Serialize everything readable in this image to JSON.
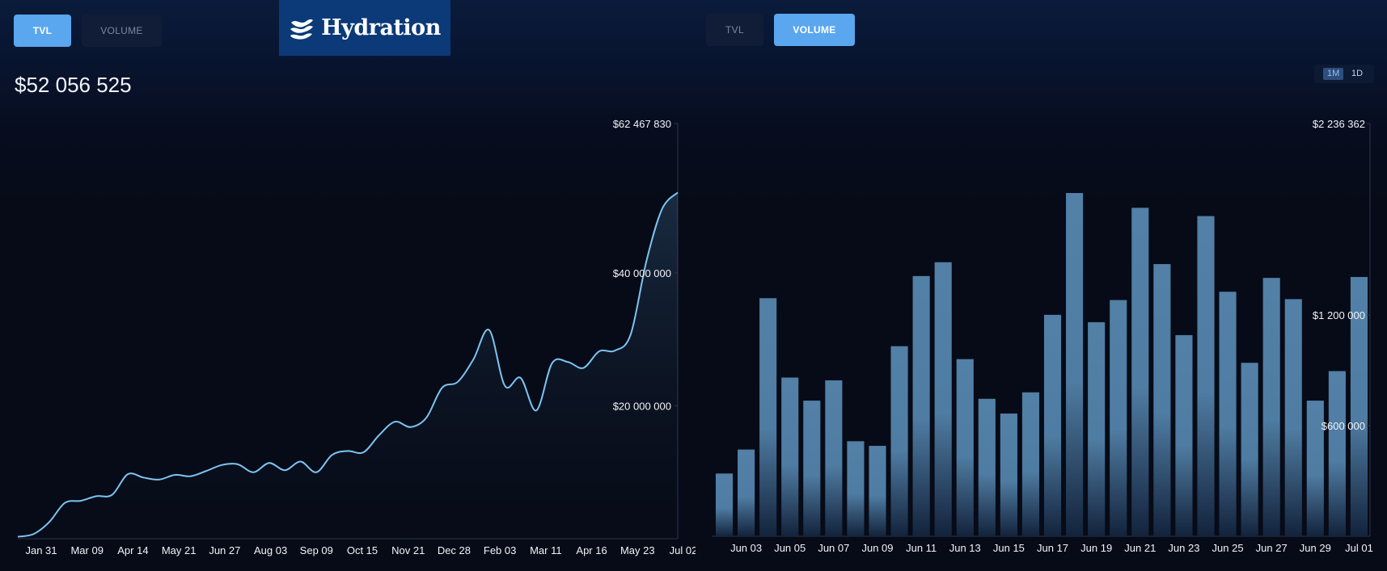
{
  "tabs_left": {
    "tvl": "TVL",
    "volume": "VOLUME",
    "active": "tvl"
  },
  "tabs_right": {
    "tvl": "TVL",
    "volume": "VOLUME",
    "active": "volume"
  },
  "logo": {
    "text": "Hydration"
  },
  "tvl_current": "$52 056 525",
  "range_options": {
    "m1": "1M",
    "d1": "1D",
    "selected": "1M"
  },
  "colors": {
    "accent": "#5aa7f0",
    "line": "#7cc4f2",
    "bar": "#5280a6",
    "background": "#070b17"
  },
  "chart_data": [
    {
      "type": "area",
      "y_tick_labels": [
        "$62 467 830",
        "$40 000 000",
        "$20 000 000"
      ],
      "y_ticks": [
        62467830,
        40000000,
        20000000
      ],
      "ylim": [
        0,
        62467830
      ],
      "x_tick_labels": [
        "Jan 31",
        "Mar 09",
        "Apr 14",
        "May 21",
        "Jun 27",
        "Aug 03",
        "Sep 09",
        "Oct 15",
        "Nov 21",
        "Dec 28",
        "Feb 03",
        "Mar 11",
        "Apr 16",
        "May 23",
        "Jul 02"
      ],
      "values": [
        {
          "x": "Jan 08",
          "y": 300000
        },
        {
          "x": "Jan 20",
          "y": 700000
        },
        {
          "x": "Feb 05",
          "y": 2500000
        },
        {
          "x": "Feb 15",
          "y": 5400000
        },
        {
          "x": "Mar 01",
          "y": 5700000
        },
        {
          "x": "Mar 12",
          "y": 6400000
        },
        {
          "x": "Mar 28",
          "y": 6600000
        },
        {
          "x": "Apr 09",
          "y": 9700000
        },
        {
          "x": "Apr 18",
          "y": 9200000
        },
        {
          "x": "May 21",
          "y": 8900000
        },
        {
          "x": "Jun 05",
          "y": 9600000
        },
        {
          "x": "Jun 27",
          "y": 9400000
        },
        {
          "x": "Jul 10",
          "y": 10200000
        },
        {
          "x": "Aug 03",
          "y": 11100000
        },
        {
          "x": "Aug 25",
          "y": 11200000
        },
        {
          "x": "Sep 01",
          "y": 10000000
        },
        {
          "x": "Sep 12",
          "y": 11400000
        },
        {
          "x": "Sep 22",
          "y": 10300000
        },
        {
          "x": "Oct 06",
          "y": 11600000
        },
        {
          "x": "Oct 15",
          "y": 10000000
        },
        {
          "x": "Oct 25",
          "y": 12600000
        },
        {
          "x": "Nov 10",
          "y": 13200000
        },
        {
          "x": "Nov 21",
          "y": 13000000
        },
        {
          "x": "Dec 05",
          "y": 15600000
        },
        {
          "x": "Dec 20",
          "y": 17600000
        },
        {
          "x": "Dec 28",
          "y": 16800000
        },
        {
          "x": "Jan 15",
          "y": 18200000
        },
        {
          "x": "Jan 28",
          "y": 22700000
        },
        {
          "x": "Feb 08",
          "y": 23600000
        },
        {
          "x": "Feb 20",
          "y": 27000000
        },
        {
          "x": "Mar 05",
          "y": 31400000
        },
        {
          "x": "Mar 16",
          "y": 23000000
        },
        {
          "x": "Mar 27",
          "y": 24200000
        },
        {
          "x": "Apr 12",
          "y": 19300000
        },
        {
          "x": "Apr 20",
          "y": 26400000
        },
        {
          "x": "May 03",
          "y": 26600000
        },
        {
          "x": "May 12",
          "y": 25700000
        },
        {
          "x": "May 19",
          "y": 28200000
        },
        {
          "x": "May 30",
          "y": 28300000
        },
        {
          "x": "Jun 06",
          "y": 30700000
        },
        {
          "x": "Jun 15",
          "y": 41700000
        },
        {
          "x": "Jun 24",
          "y": 49600000
        },
        {
          "x": "Jul 03",
          "y": 52100000
        }
      ]
    },
    {
      "type": "bar",
      "y_tick_labels": [
        "$2 236 362",
        "$1 200 000",
        "$600 000"
      ],
      "y_ticks": [
        2236362,
        1200000,
        600000
      ],
      "ylim": [
        0,
        2236362
      ],
      "x_tick_labels": [
        "Jun 03",
        "Jun 05",
        "Jun 07",
        "Jun 09",
        "Jun 11",
        "Jun 13",
        "Jun 15",
        "Jun 17",
        "Jun 19",
        "Jun 21",
        "Jun 23",
        "Jun 25",
        "Jun 27",
        "Jun 29",
        "Jul 01"
      ],
      "categories": [
        "Jun 02",
        "Jun 03",
        "Jun 04",
        "Jun 05",
        "Jun 06",
        "Jun 07",
        "Jun 08",
        "Jun 09",
        "Jun 10",
        "Jun 11",
        "Jun 12",
        "Jun 13",
        "Jun 14",
        "Jun 15",
        "Jun 16",
        "Jun 17",
        "Jun 18",
        "Jun 19",
        "Jun 20",
        "Jun 21",
        "Jun 22",
        "Jun 23",
        "Jun 24",
        "Jun 25",
        "Jun 26",
        "Jun 27",
        "Jun 28",
        "Jun 29",
        "Jun 30",
        "Jul 01"
      ],
      "values": [
        340000,
        470000,
        1290000,
        860000,
        735000,
        845000,
        515000,
        490000,
        1030000,
        1410000,
        1485000,
        960000,
        745000,
        665000,
        780000,
        1200000,
        1860000,
        1160000,
        1280000,
        1780000,
        1475000,
        1090000,
        1735000,
        1325000,
        940000,
        1400000,
        1285000,
        735000,
        895000,
        1405000
      ]
    }
  ]
}
